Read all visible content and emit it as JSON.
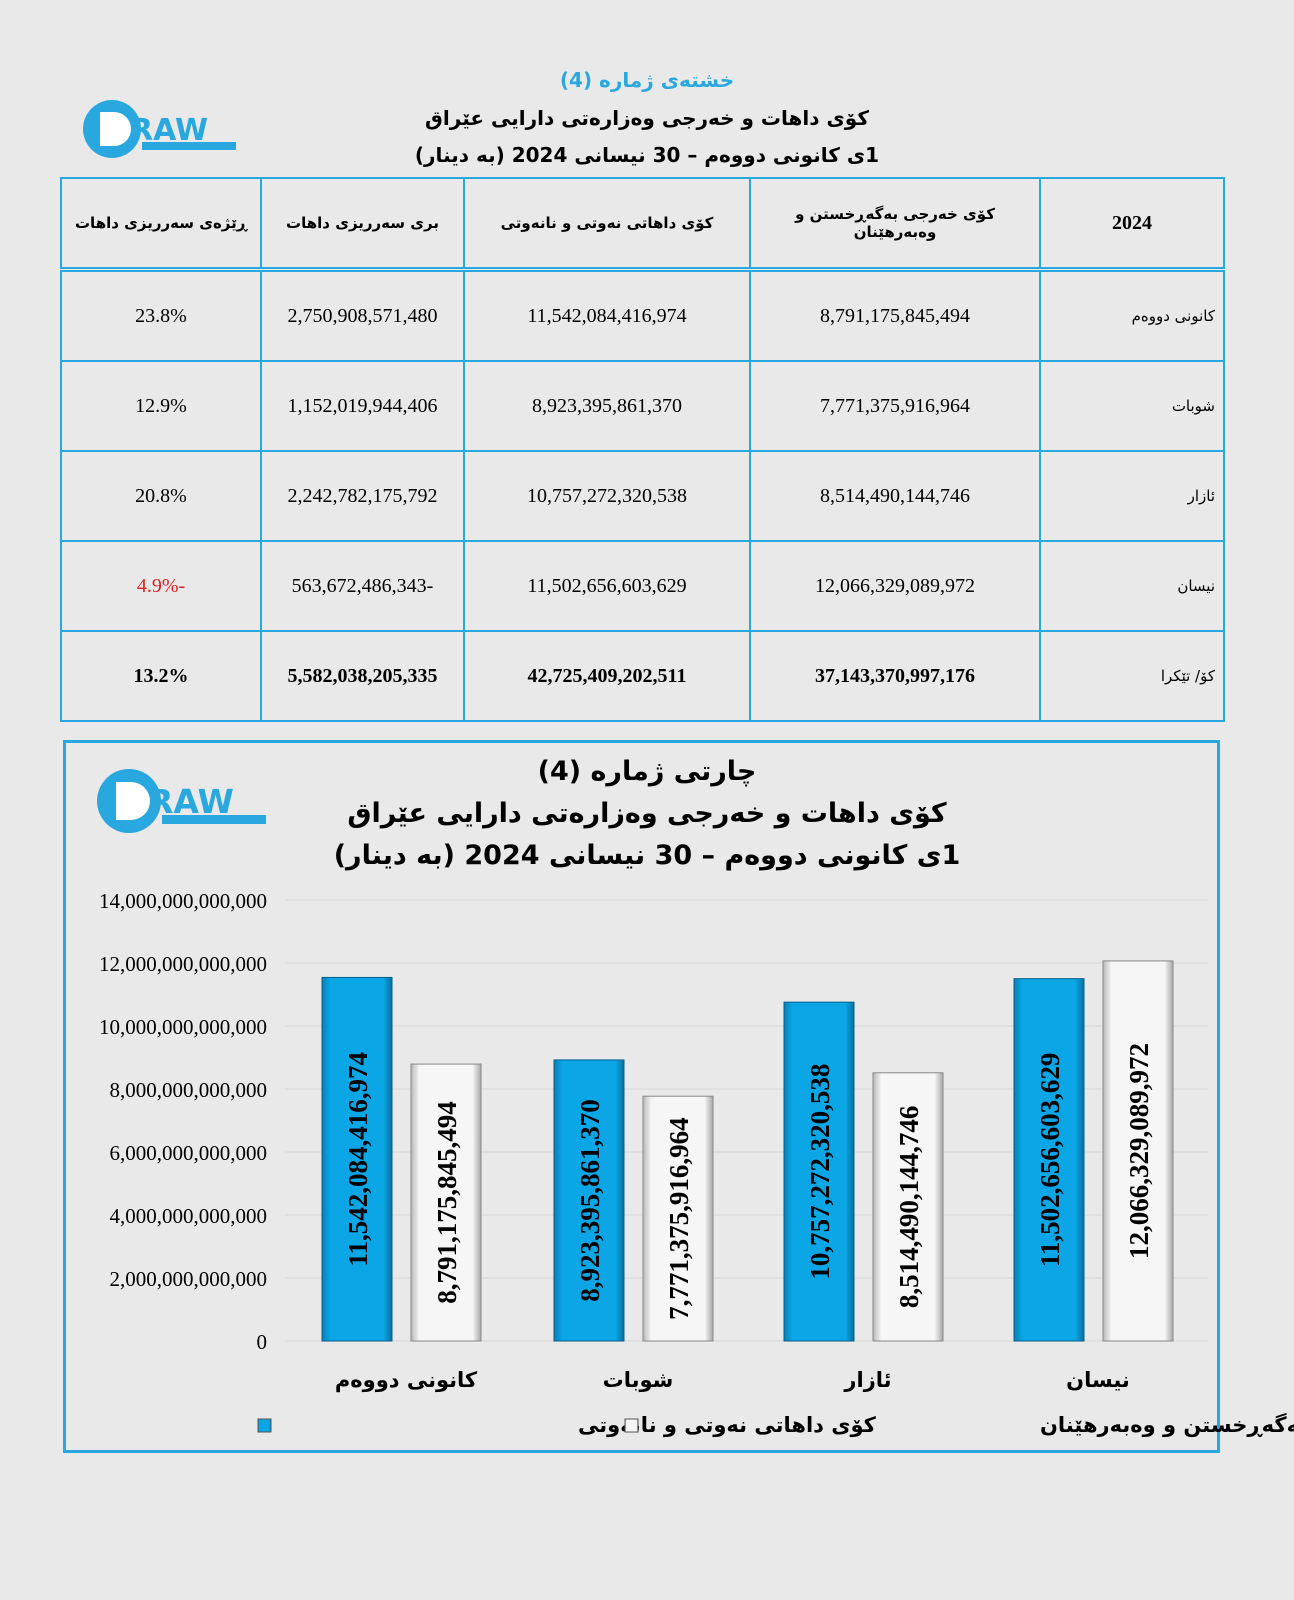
{
  "table_section": {
    "caption": "خشتەی ژمارە (4)",
    "title": "کۆی داهات و خەرجی وەزارەتی دارایی عێراق",
    "subtitle": "1ی کانونی دووەم – 30 نیسانی 2024 (بە دینار)",
    "logo_text": "DRAW",
    "headers": [
      "2024",
      "کۆی خەرجی بەگەڕخستن و وەبەرهێنان",
      "کۆی داهاتی نەوتی و نانەوتی",
      "بری سەرریزی داهات",
      "ڕێژەی سەرریزی داهات"
    ],
    "rows": [
      {
        "month": "کانونی دووەم",
        "expense": "8,791,175,845,494",
        "revenue": "11,542,084,416,974",
        "surplus": "2,750,908,571,480",
        "ratio": "23.8%"
      },
      {
        "month": "شوبات",
        "expense": "7,771,375,916,964",
        "revenue": "8,923,395,861,370",
        "surplus": "1,152,019,944,406",
        "ratio": "12.9%"
      },
      {
        "month": "ئازار",
        "expense": "8,514,490,144,746",
        "revenue": "10,757,272,320,538",
        "surplus": "2,242,782,175,792",
        "ratio": "20.8%"
      },
      {
        "month": "نیسان",
        "expense": "12,066,329,089,972",
        "revenue": "11,502,656,603,629",
        "surplus": "-563,672,486,343",
        "ratio": "-4.9%"
      }
    ],
    "total": {
      "month": "کۆ/ تێکرا",
      "expense": "37,143,370,997,176",
      "revenue": "42,725,409,202,511",
      "surplus": "5,582,038,205,335",
      "ratio": "13.2%"
    },
    "negative_color": "#e02020"
  },
  "chart_data": {
    "type": "bar",
    "caption": "چارتی ژمارە (4)",
    "title": "کۆی داهات و خەرجی وەزارەتی دارایی عێراق",
    "subtitle": "1ی کانونی دووەم – 30 نیسانی 2024 (بە دینار)",
    "logo_text": "DRAW",
    "categories": [
      "کانونی دووەم",
      "شوبات",
      "ئازار",
      "نیسان"
    ],
    "series": [
      {
        "name": "کۆی داهاتی نەوتی و نانەوتی",
        "color": "#0aa6e6",
        "values": [
          11542084416974,
          8923395861370,
          10757272320538,
          11502656603629
        ],
        "labels": [
          "11,542,084,416,974",
          "8,923,395,861,370",
          "10,757,272,320,538",
          "11,502,656,603,629"
        ]
      },
      {
        "name": "کۆی خەرجی بەگەڕخستن و وەبەرهێنان",
        "color": "#f4f4f4",
        "values": [
          8791175845494,
          7771375916964,
          8514490144746,
          12066329089972
        ],
        "labels": [
          "8,791,175,845,494",
          "7,771,375,916,964",
          "8,514,490,144,746",
          "12,066,329,089,972"
        ]
      }
    ],
    "ylim": [
      0,
      14000000000000
    ],
    "yticks": [
      "0",
      "2,000,000,000,000",
      "4,000,000,000,000",
      "6,000,000,000,000",
      "8,000,000,000,000",
      "10,000,000,000,000",
      "12,000,000,000,000",
      "14,000,000,000,000"
    ],
    "grid": true,
    "legend_position": "bottom"
  }
}
